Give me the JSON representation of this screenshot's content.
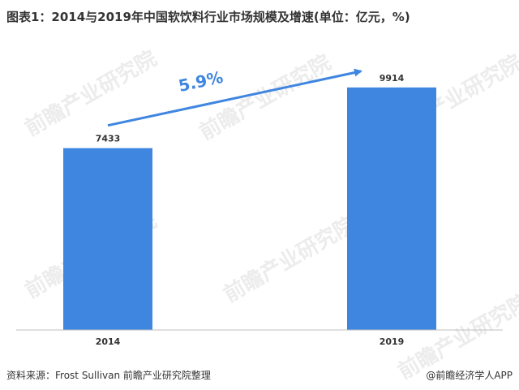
{
  "title": "图表1：2014与2019年中国软饮料行业市场规模及增速(单位：亿元，%)",
  "watermark": "前瞻产业研究院",
  "source_text": "资料来源：Frost Sullivan 前瞻产业研究院整理",
  "credit_text": "@前瞻经济学人APP",
  "colors": {
    "bar": "#3f86e0",
    "arrow": "#3f86e0",
    "axis": "#bfbfbf",
    "text": "#333333"
  },
  "chart_data": {
    "type": "bar",
    "categories": [
      "2014",
      "2019"
    ],
    "values": [
      7433,
      9914
    ],
    "data_labels": [
      "7433",
      "9914"
    ],
    "ylim": [
      0,
      11500
    ],
    "grid": false,
    "annotation": {
      "text": "5.9%",
      "from": "2014",
      "to": "2019",
      "shape": "arrow"
    },
    "title": "图表1：2014与2019年中国软饮料行业市场规模及增速(单位：亿元，%)",
    "xlabel": "",
    "ylabel": ""
  }
}
